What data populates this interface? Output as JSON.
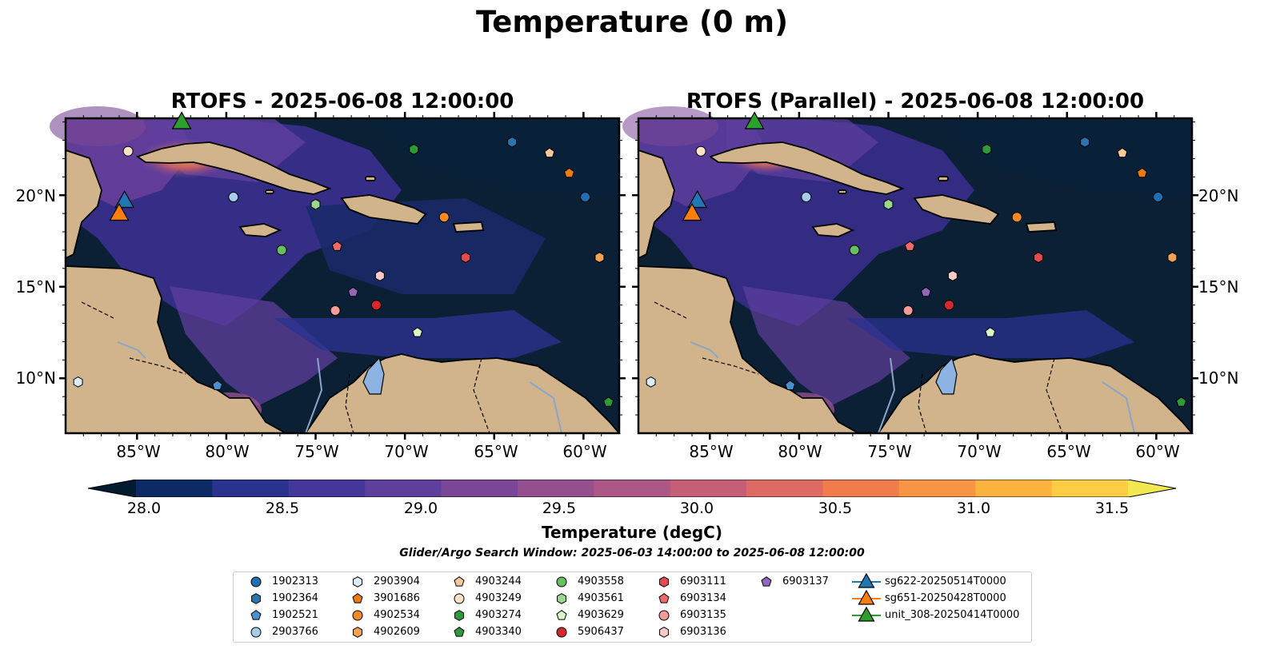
{
  "suptitle": "Temperature (0 m)",
  "panels": [
    {
      "title": "RTOFS - 2025-06-08 12:00:00"
    },
    {
      "title": "RTOFS (Parallel) - 2025-06-08 12:00:00"
    }
  ],
  "map": {
    "lon_range": [
      -89,
      -58
    ],
    "lat_range": [
      7,
      24.2
    ],
    "lon_ticks": [
      "85°W",
      "80°W",
      "75°W",
      "70°W",
      "65°W",
      "60°W"
    ],
    "lat_ticks": [
      "20°N",
      "15°N",
      "10°N"
    ],
    "colors": {
      "land": "#d2b48c",
      "ocean_cold": "#0b2035",
      "lake": "#8db3e2",
      "river": "#8aa5c8"
    }
  },
  "colorbar": {
    "label": "Temperature (degC)",
    "ticks": [
      "28.0",
      "28.5",
      "29.0",
      "29.5",
      "30.0",
      "30.5",
      "31.0",
      "31.5"
    ],
    "range": [
      28.0,
      31.5
    ],
    "colors": [
      "#031b2f",
      "#0d2a66",
      "#2a3290",
      "#45369c",
      "#5f3f9d",
      "#7a4796",
      "#934f8e",
      "#ac5786",
      "#c55f78",
      "#de6a64",
      "#f07c4d",
      "#f89544",
      "#fbb23e",
      "#fbcd44",
      "#f2e852"
    ]
  },
  "search_window": "Glider/Argo Search Window: 2025-06-03 14:00:00 to 2025-06-08 12:00:00",
  "platforms": [
    {
      "id": "1902313",
      "marker": "circle",
      "color": "#1f6fb4",
      "lon": -59.9,
      "lat": 19.9
    },
    {
      "id": "1902364",
      "marker": "hexagon",
      "color": "#2a74b2",
      "lon": -64.0,
      "lat": 22.9
    },
    {
      "id": "1902521",
      "marker": "pentagon",
      "color": "#4a8fd0",
      "lon": -80.5,
      "lat": 9.6
    },
    {
      "id": "2903766",
      "marker": "circle",
      "color": "#a6cdee",
      "lon": -79.6,
      "lat": 19.9
    },
    {
      "id": "2903904",
      "marker": "hexagon",
      "color": "#dcecf8",
      "lon": -88.3,
      "lat": 9.8
    },
    {
      "id": "3901686",
      "marker": "pentagon",
      "color": "#ee7a14",
      "lon": -60.8,
      "lat": 21.2
    },
    {
      "id": "4902534",
      "marker": "circle",
      "color": "#f58a26",
      "lon": -67.8,
      "lat": 18.8
    },
    {
      "id": "4902609",
      "marker": "hexagon",
      "color": "#f5a352",
      "lon": -59.1,
      "lat": 16.6
    },
    {
      "id": "4903244",
      "marker": "pentagon",
      "color": "#f8c79a",
      "lon": -61.9,
      "lat": 22.3
    },
    {
      "id": "4903249",
      "marker": "circle",
      "color": "#fde2c8",
      "lon": -85.5,
      "lat": 22.4
    },
    {
      "id": "4903274",
      "marker": "hexagon",
      "color": "#2e9a3a",
      "lon": -69.5,
      "lat": 22.5
    },
    {
      "id": "4903340",
      "marker": "pentagon",
      "color": "#2e9a3a",
      "lon": -58.6,
      "lat": 8.7
    },
    {
      "id": "4903558",
      "marker": "circle",
      "color": "#66c060",
      "lon": -76.9,
      "lat": 17.0
    },
    {
      "id": "4903561",
      "marker": "hexagon",
      "color": "#9ad88f",
      "lon": -75.0,
      "lat": 19.5
    },
    {
      "id": "4903629",
      "marker": "pentagon",
      "color": "#d8f5cc",
      "lon": -69.3,
      "lat": 12.5
    },
    {
      "id": "5906437",
      "marker": "circle",
      "color": "#d6262e",
      "lon": -71.6,
      "lat": 14.0
    },
    {
      "id": "6903111",
      "marker": "hexagon",
      "color": "#e5484d",
      "lon": -66.6,
      "lat": 16.6
    },
    {
      "id": "6903134",
      "marker": "pentagon",
      "color": "#f06a6a",
      "lon": -73.8,
      "lat": 17.2
    },
    {
      "id": "6903135",
      "marker": "circle",
      "color": "#f59b9b",
      "lon": -73.9,
      "lat": 13.7
    },
    {
      "id": "6903136",
      "marker": "hexagon",
      "color": "#fcc8c8",
      "lon": -71.4,
      "lat": 15.6
    },
    {
      "id": "6903137",
      "marker": "pentagon",
      "color": "#9467bd",
      "lon": -72.9,
      "lat": 14.7
    }
  ],
  "gliders": [
    {
      "id": "sg622-20250514T0000",
      "color": "#1f77b4",
      "lon": -85.7,
      "lat": 19.7
    },
    {
      "id": "sg651-20250428T0000",
      "color": "#ff7f0e",
      "lon": -86.0,
      "lat": 19.0
    },
    {
      "id": "unit_308-20250414T0000",
      "color": "#2ca02c",
      "lon": -82.5,
      "lat": 24.0
    }
  ]
}
